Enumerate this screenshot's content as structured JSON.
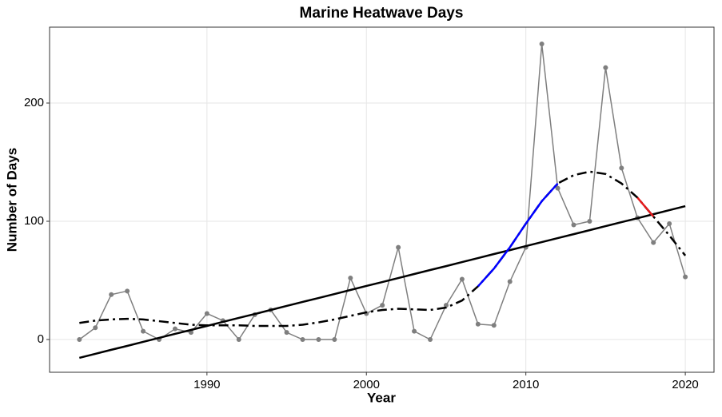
{
  "chart_data": {
    "type": "line",
    "title": "Marine Heatwave Days",
    "x_label": "Year",
    "y_label": "Number of Days",
    "x": [
      1982,
      1983,
      1984,
      1985,
      1986,
      1987,
      1988,
      1989,
      1990,
      1991,
      1992,
      1993,
      1994,
      1995,
      1996,
      1997,
      1998,
      1999,
      2000,
      2001,
      2002,
      2003,
      2004,
      2005,
      2006,
      2007,
      2008,
      2009,
      2010,
      2011,
      2012,
      2013,
      2014,
      2015,
      2016,
      2017,
      2018,
      2019,
      2020
    ],
    "series": [
      {
        "color": "#7f7f7f",
        "width": 1.5,
        "linestyle": "solid",
        "markers": true,
        "values": [
          0,
          10,
          38,
          41,
          7,
          0,
          9,
          6,
          22,
          16,
          0,
          21,
          25,
          6,
          0,
          0,
          0,
          52,
          22,
          29,
          78,
          7,
          0,
          29,
          51,
          13,
          12,
          49,
          78,
          250,
          128,
          97,
          100,
          230,
          145,
          103,
          82,
          98,
          53
        ]
      },
      {
        "color": "#000000",
        "width": 2.5,
        "linestyle": "solid",
        "markers": false,
        "values": [
          -15.5,
          -12.1,
          -8.7,
          -5.4,
          -2.0,
          1.4,
          4.8,
          8.1,
          11.5,
          14.9,
          18.3,
          21.6,
          25.0,
          28.4,
          31.8,
          35.1,
          38.5,
          41.9,
          45.3,
          48.6,
          52.0,
          55.4,
          58.8,
          62.1,
          65.5,
          68.9,
          72.3,
          75.6,
          79.0,
          82.4,
          85.8,
          89.1,
          92.5,
          95.9,
          99.3,
          102.6,
          106.0,
          109.4,
          112.8
        ]
      },
      {
        "color": "#000000",
        "width": 2.5,
        "linestyle": "dashdot",
        "markers": false,
        "values": [
          14,
          16,
          17,
          17.5,
          17,
          15.5,
          14,
          12.5,
          12,
          12,
          12,
          11.5,
          11.5,
          11.5,
          12.5,
          14.5,
          17,
          20,
          23,
          25,
          26,
          25.5,
          25,
          27,
          33,
          45,
          60,
          78,
          98,
          117,
          132,
          139,
          142,
          140,
          132,
          120,
          104,
          88,
          71
        ]
      },
      {
        "color": "#0000ff",
        "width": 2.5,
        "linestyle": "solid",
        "markers": false,
        "values": [
          null,
          null,
          null,
          null,
          null,
          null,
          null,
          null,
          null,
          null,
          null,
          null,
          null,
          null,
          null,
          null,
          null,
          null,
          null,
          null,
          null,
          null,
          null,
          null,
          null,
          45,
          60,
          78,
          98,
          117,
          132,
          null,
          null,
          null,
          null,
          null,
          null,
          null,
          null
        ]
      },
      {
        "color": "#e41a1c",
        "width": 2.5,
        "linestyle": "solid",
        "markers": false,
        "values": [
          null,
          null,
          null,
          null,
          null,
          null,
          null,
          null,
          null,
          null,
          null,
          null,
          null,
          null,
          null,
          null,
          null,
          null,
          null,
          null,
          null,
          null,
          null,
          null,
          null,
          null,
          null,
          null,
          null,
          null,
          null,
          null,
          null,
          null,
          null,
          120,
          104,
          null,
          null
        ]
      }
    ],
    "xlim": [
      1980.13,
      2021.8
    ],
    "ylim": [
      -27.7,
      264.2
    ],
    "xticks": [
      1990,
      2000,
      2010,
      2020
    ],
    "yticks": [
      0,
      100,
      200
    ],
    "grid": true
  }
}
